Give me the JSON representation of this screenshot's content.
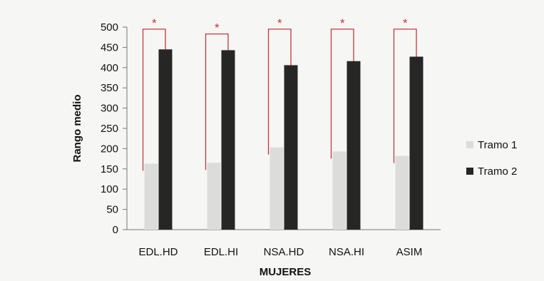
{
  "chart_data": {
    "type": "bar",
    "title": "",
    "xlabel": "MUJERES",
    "ylabel": "Rango medio",
    "categories": [
      "EDL.HD",
      "EDL.HI",
      "NSA.HD",
      "NSA.HI",
      "ASIM"
    ],
    "series": [
      {
        "name": "Tramo 1",
        "values": [
          163,
          165,
          203,
          193,
          182
        ],
        "color": "#dcdcda"
      },
      {
        "name": "Tramo 2",
        "values": [
          445,
          443,
          406,
          416,
          427
        ],
        "color": "#262626"
      }
    ],
    "ylim": [
      0,
      500
    ],
    "yticks": [
      0,
      50,
      100,
      150,
      200,
      250,
      300,
      350,
      400,
      450,
      500
    ],
    "grid": false,
    "legend_position": "right",
    "significance": {
      "marker": "*",
      "color": "#c0393b",
      "bracket_tops": [
        495,
        483,
        495,
        495,
        495
      ]
    }
  }
}
